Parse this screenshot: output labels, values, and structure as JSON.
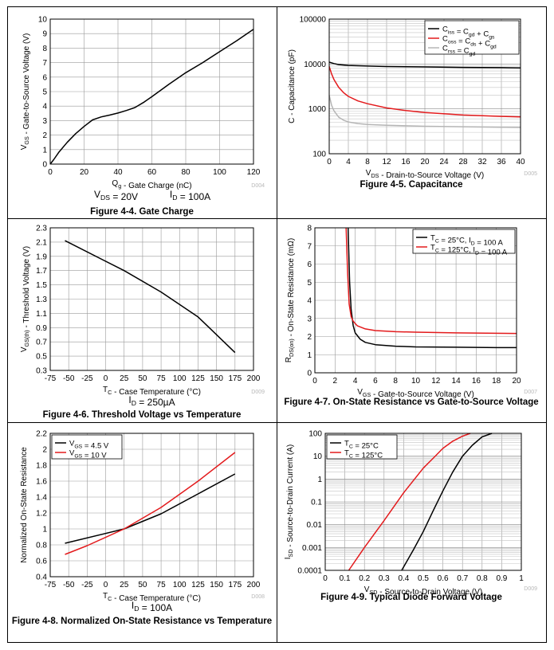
{
  "chart_data": [
    {
      "id": "gate-charge",
      "type": "line",
      "title": "Figure 4-4. Gate Charge",
      "xlabel": "Q",
      "xlabel_sub": "g",
      "xlabel_rest": " - Gate Charge (nC)",
      "ylabel": "V",
      "ylabel_sub": "GS",
      "ylabel_rest": " - Gate-to-Source Voltage (V)",
      "xlim": [
        0,
        120
      ],
      "ylim": [
        0,
        10
      ],
      "xscale": "linear",
      "yscale": "linear",
      "xticks": [
        0,
        20,
        40,
        60,
        80,
        100,
        120
      ],
      "yticks": [
        0,
        1,
        2,
        3,
        4,
        5,
        6,
        7,
        8,
        9,
        10
      ],
      "code": "D004",
      "conditions": [
        "V",
        "DS",
        " = 20V",
        "I",
        "D",
        " = 100A"
      ],
      "series": [
        {
          "name": "",
          "color": "#000000",
          "x": [
            0,
            2,
            5,
            10,
            15,
            20,
            25,
            30,
            35,
            40,
            45,
            50,
            55,
            60,
            70,
            80,
            90,
            100,
            110,
            120
          ],
          "y": [
            0,
            0.3,
            0.8,
            1.5,
            2.1,
            2.6,
            3.05,
            3.25,
            3.38,
            3.52,
            3.7,
            3.9,
            4.25,
            4.65,
            5.5,
            6.3,
            7.0,
            7.75,
            8.5,
            9.3
          ]
        }
      ]
    },
    {
      "id": "capacitance",
      "type": "line",
      "title": "Figure 4-5. Capacitance",
      "xlabel": "V",
      "xlabel_sub": "DS",
      "xlabel_rest": " - Drain-to-Source Voltage (V)",
      "ylabel": "C - Capacitance (pF)",
      "ylabel_sub": "",
      "ylabel_rest": "",
      "xlim": [
        0,
        40
      ],
      "ylim": [
        100,
        100000
      ],
      "xscale": "linear",
      "yscale": "log",
      "xticks": [
        0,
        4,
        8,
        12,
        16,
        20,
        24,
        28,
        32,
        36,
        40
      ],
      "yticks": [
        100,
        1000,
        10000,
        100000
      ],
      "code": "D005",
      "legend": "top-right",
      "series": [
        {
          "name": "Ciss = Cgd + Cgs",
          "color": "#000000",
          "x": [
            0,
            1,
            2,
            4,
            8,
            12,
            16,
            20,
            28,
            36,
            40
          ],
          "y": [
            11000,
            10200,
            9700,
            9300,
            9000,
            8800,
            8700,
            8600,
            8400,
            8300,
            8200
          ]
        },
        {
          "name": "Coss = Cds + Cgd",
          "color": "#e31a1c",
          "x": [
            0,
            0.5,
            1,
            2,
            3,
            4,
            6,
            8,
            12,
            16,
            20,
            28,
            36,
            40
          ],
          "y": [
            8800,
            6000,
            4500,
            3000,
            2300,
            1900,
            1500,
            1300,
            1050,
            920,
            830,
            730,
            680,
            660
          ]
        },
        {
          "name": "Crss = Cgd",
          "color": "#b5b5b5",
          "x": [
            0,
            0.5,
            1,
            2,
            3,
            4,
            6,
            8,
            12,
            16,
            20,
            28,
            36,
            40
          ],
          "y": [
            2000,
            1200,
            900,
            650,
            560,
            510,
            470,
            450,
            430,
            420,
            410,
            400,
            390,
            385
          ]
        }
      ]
    },
    {
      "id": "threshold",
      "type": "line",
      "title": "Figure 4-6. Threshold Voltage vs Temperature",
      "xlabel": "T",
      "xlabel_sub": "C",
      "xlabel_rest": " - Case Temperature (°C)",
      "ylabel": "V",
      "ylabel_sub": "GS(th)",
      "ylabel_rest": " - Threshold Voltage (V)",
      "xlim": [
        -75,
        200
      ],
      "ylim": [
        0.3,
        2.3
      ],
      "xscale": "linear",
      "yscale": "linear",
      "xticks": [
        -75,
        -50,
        -25,
        0,
        25,
        50,
        75,
        100,
        125,
        150,
        175,
        200
      ],
      "yticks": [
        0.3,
        0.5,
        0.7,
        0.9,
        1.1,
        1.3,
        1.5,
        1.7,
        1.9,
        2.1,
        2.3
      ],
      "code": "D009",
      "conditions": [
        "I",
        "D",
        " = 250µA"
      ],
      "series": [
        {
          "name": "",
          "color": "#000000",
          "x": [
            -55,
            25,
            75,
            125,
            175
          ],
          "y": [
            2.12,
            1.7,
            1.4,
            1.05,
            0.55
          ]
        }
      ]
    },
    {
      "id": "on-resistance-vgs",
      "type": "line",
      "title": "Figure 4-7. On-State Resistance vs Gate-to-Source Voltage",
      "xlabel": "V",
      "xlabel_sub": "GS",
      "xlabel_rest": " - Gate-to-Source Voltage (V)",
      "ylabel": "R",
      "ylabel_sub": "DS(on)",
      "ylabel_rest": " - On-State Resistance (mΩ)",
      "xlim": [
        0,
        20
      ],
      "ylim": [
        0,
        8
      ],
      "xscale": "linear",
      "yscale": "linear",
      "xticks": [
        0,
        2,
        4,
        6,
        8,
        10,
        12,
        14,
        16,
        18,
        20
      ],
      "yticks": [
        0,
        1,
        2,
        3,
        4,
        5,
        6,
        7,
        8
      ],
      "code": "D007",
      "legend": "top-right",
      "series": [
        {
          "name": "TC = 25°C, ID = 100 A",
          "color": "#000000",
          "x": [
            3.3,
            3.45,
            3.6,
            3.8,
            4.0,
            4.5,
            5,
            6,
            8,
            10,
            14,
            18,
            20
          ],
          "y": [
            8,
            5.0,
            3.5,
            2.6,
            2.2,
            1.85,
            1.68,
            1.55,
            1.47,
            1.43,
            1.41,
            1.39,
            1.39
          ]
        },
        {
          "name": "TC = 125°C, ID = 100 A",
          "color": "#e31a1c",
          "x": [
            3.1,
            3.25,
            3.4,
            3.6,
            3.8,
            4.2,
            5,
            6,
            8,
            10,
            14,
            18,
            20
          ],
          "y": [
            8,
            5.5,
            3.8,
            3.1,
            2.85,
            2.6,
            2.42,
            2.33,
            2.27,
            2.24,
            2.2,
            2.18,
            2.17
          ]
        }
      ]
    },
    {
      "id": "normalized-ron",
      "type": "line",
      "title": "Figure 4-8. Normalized On-State Resistance vs Temperature",
      "xlabel": "T",
      "xlabel_sub": "C",
      "xlabel_rest": " - Case Temperature (°C)",
      "ylabel": "Normalized On-State Resistance",
      "ylabel_sub": "",
      "ylabel_rest": "",
      "xlim": [
        -75,
        200
      ],
      "ylim": [
        0.4,
        2.2
      ],
      "xscale": "linear",
      "yscale": "linear",
      "xticks": [
        -75,
        -50,
        -25,
        0,
        25,
        50,
        75,
        100,
        125,
        150,
        175,
        200
      ],
      "yticks": [
        0.4,
        0.6,
        0.8,
        1,
        1.2,
        1.4,
        1.6,
        1.8,
        2,
        2.2
      ],
      "code": "D008",
      "conditions": [
        "I",
        "D",
        " = 100A"
      ],
      "legend": "top-left",
      "series": [
        {
          "name": "VGS = 4.5 V",
          "color": "#000000",
          "x": [
            -55,
            25,
            75,
            125,
            175
          ],
          "y": [
            0.82,
            1.0,
            1.19,
            1.44,
            1.69
          ]
        },
        {
          "name": "VGS = 10 V",
          "color": "#e31a1c",
          "x": [
            -55,
            -25,
            25,
            75,
            125,
            175
          ],
          "y": [
            0.68,
            0.79,
            1.0,
            1.27,
            1.6,
            1.96
          ]
        }
      ]
    },
    {
      "id": "diode-forward",
      "type": "line",
      "title": "Figure 4-9. Typical Diode Forward Voltage",
      "xlabel": "V",
      "xlabel_sub": "SD",
      "xlabel_rest": " - Source-to-Drain Voltage (V)",
      "ylabel": "I",
      "ylabel_sub": "SD",
      "ylabel_rest": " - Source-to-Drain Current (A)",
      "xlim": [
        0,
        1
      ],
      "ylim": [
        0.0001,
        100
      ],
      "xscale": "linear",
      "yscale": "log",
      "xticks": [
        0,
        0.1,
        0.2,
        0.3,
        0.4,
        0.5,
        0.6,
        0.7,
        0.8,
        0.9,
        1
      ],
      "yticks": [
        0.0001,
        0.001,
        0.01,
        0.1,
        1,
        10,
        100
      ],
      "code": "D009",
      "legend": "top-left",
      "series": [
        {
          "name": "TC = 25°C",
          "color": "#000000",
          "x": [
            0.39,
            0.45,
            0.5,
            0.55,
            0.6,
            0.65,
            0.7,
            0.75,
            0.8,
            0.85
          ],
          "y": [
            0.0001,
            0.0008,
            0.005,
            0.04,
            0.3,
            2.0,
            10,
            30,
            70,
            100
          ]
        },
        {
          "name": "TC = 125°C",
          "color": "#e31a1c",
          "x": [
            0.12,
            0.2,
            0.3,
            0.4,
            0.5,
            0.55,
            0.6,
            0.65,
            0.7,
            0.74
          ],
          "y": [
            0.0001,
            0.001,
            0.015,
            0.25,
            3.0,
            8,
            22,
            45,
            75,
            100
          ]
        }
      ]
    }
  ],
  "legend_labels": {
    "capacitance": [
      {
        "a": "C",
        "as": "iss",
        "b": " = C",
        "bs": "gd",
        "c": " + C",
        "cs": "gs"
      },
      {
        "a": "C",
        "as": "oss",
        "b": " = C",
        "bs": "ds",
        "c": " + C",
        "cs": "gd"
      },
      {
        "a": "C",
        "as": "rss",
        "b": " = C",
        "bs": "gd",
        "c": "",
        "cs": ""
      }
    ],
    "on-resistance-vgs": [
      {
        "a": "T",
        "as": "C",
        "b": " = 25°C, I",
        "bs": "D",
        "c": " = 100 A",
        "cs": ""
      },
      {
        "a": "T",
        "as": "C",
        "b": " = 125°C, I",
        "bs": "D",
        "c": " = 100 A",
        "cs": ""
      }
    ],
    "normalized-ron": [
      {
        "a": "V",
        "as": "GS",
        "b": " = 4.5 V",
        "bs": "",
        "c": "",
        "cs": ""
      },
      {
        "a": "V",
        "as": "GS",
        "b": " = 10 V",
        "bs": "",
        "c": "",
        "cs": ""
      }
    ],
    "diode-forward": [
      {
        "a": "T",
        "as": "C",
        "b": " = 25°C",
        "bs": "",
        "c": "",
        "cs": ""
      },
      {
        "a": "T",
        "as": "C",
        "b": " = 125°C",
        "bs": "",
        "c": "",
        "cs": ""
      }
    ]
  }
}
